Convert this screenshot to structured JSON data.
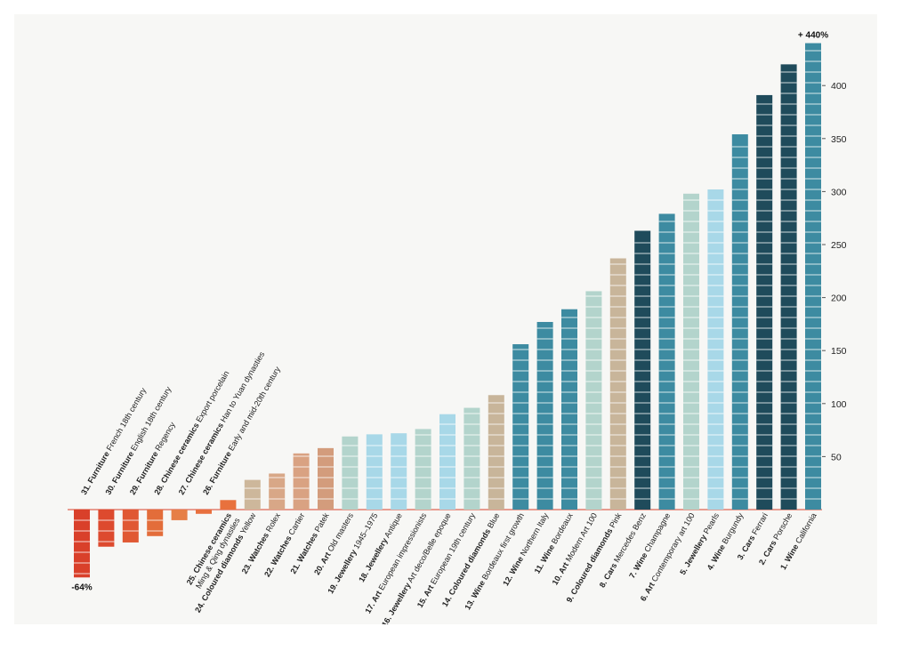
{
  "chart_data": {
    "type": "bar",
    "title": "",
    "xlabel": "",
    "ylabel": "",
    "ylim": [
      -64,
      440
    ],
    "yticks": [
      50,
      100,
      150,
      200,
      250,
      300,
      350,
      400
    ],
    "annotations": {
      "max_label": "+ 440%",
      "min_label": "-64%"
    },
    "grid": false,
    "categories": [
      {
        "num": "31.",
        "cat": "Furniture",
        "desc": "French 18th century",
        "value": -64,
        "color": "#d9402a"
      },
      {
        "num": "30.",
        "cat": "Furniture",
        "desc": "English 18th century",
        "value": -35,
        "color": "#dd4a2e"
      },
      {
        "num": "29.",
        "cat": "Furniture",
        "desc": "Regency",
        "value": -31,
        "color": "#e05833"
      },
      {
        "num": "28.",
        "cat": "Chinese ceramics",
        "desc": "Export porcelain",
        "value": -25,
        "color": "#e36d3a"
      },
      {
        "num": "27.",
        "cat": "Chinese ceramics",
        "desc": "Han to Yuan dynasties",
        "value": -10,
        "color": "#e67f46"
      },
      {
        "num": "26.",
        "cat": "Furniture",
        "desc": "Early and mid-20th century",
        "value": -4,
        "color": "#e8703e"
      },
      {
        "num": "25.",
        "cat": "Chinese ceramics",
        "desc": "Ming & Qing dynasties",
        "value": 9,
        "color": "#e8713d"
      },
      {
        "num": "24.",
        "cat": "Coloured diamonds",
        "desc": "Yellow",
        "value": 28,
        "color": "#cdb79b"
      },
      {
        "num": "23.",
        "cat": "Watches",
        "desc": "Rolex",
        "value": 34,
        "color": "#d8a787"
      },
      {
        "num": "22.",
        "cat": "Watches",
        "desc": "Cartier",
        "value": 53,
        "color": "#d9a282"
      },
      {
        "num": "21.",
        "cat": "Watches",
        "desc": "Patek",
        "value": 58,
        "color": "#d39c7c"
      },
      {
        "num": "20.",
        "cat": "Art",
        "desc": "Old masters",
        "value": 69,
        "color": "#b3d4cc"
      },
      {
        "num": "19.",
        "cat": "Jewellery",
        "desc": "1945–1975",
        "value": 71,
        "color": "#a8d8e8"
      },
      {
        "num": "18.",
        "cat": "Jewellery",
        "desc": "Antique",
        "value": 72,
        "color": "#a8d8e8"
      },
      {
        "num": "17.",
        "cat": "Art",
        "desc": "European impressionists",
        "value": 76,
        "color": "#b3d4cc"
      },
      {
        "num": "16.",
        "cat": "Jewellery",
        "desc": "Art deco/Belle epoque",
        "value": 90,
        "color": "#a8d8e8"
      },
      {
        "num": "15.",
        "cat": "Art",
        "desc": "European 19th century",
        "value": 96,
        "color": "#b3d4cc"
      },
      {
        "num": "14.",
        "cat": "Coloured diamonds",
        "desc": "Blue",
        "value": 108,
        "color": "#c8b59a"
      },
      {
        "num": "13.",
        "cat": "Wine",
        "desc": "Bordeaux first growth",
        "value": 156,
        "color": "#3d8ba1"
      },
      {
        "num": "12.",
        "cat": "Wine",
        "desc": "Northern Italy",
        "value": 177,
        "color": "#3d8ba1"
      },
      {
        "num": "11.",
        "cat": "Wine",
        "desc": "Bordeaux",
        "value": 189,
        "color": "#3d8ba1"
      },
      {
        "num": "10.",
        "cat": "Art",
        "desc": "Modern Art 100",
        "value": 206,
        "color": "#b3d4cc"
      },
      {
        "num": "9.",
        "cat": "Coloured diamonds",
        "desc": "Pink",
        "value": 237,
        "color": "#c8b59a"
      },
      {
        "num": "8.",
        "cat": "Cars",
        "desc": "Mercedes Benz",
        "value": 263,
        "color": "#1f4b5b"
      },
      {
        "num": "7.",
        "cat": "Wine",
        "desc": "Champagne",
        "value": 279,
        "color": "#3d8ba1"
      },
      {
        "num": "6.",
        "cat": "Art",
        "desc": "Contemporary art 100",
        "value": 298,
        "color": "#b3d4cc"
      },
      {
        "num": "5.",
        "cat": "Jewellery",
        "desc": "Pearls",
        "value": 302,
        "color": "#a8d8e8"
      },
      {
        "num": "4.",
        "cat": "Wine",
        "desc": "Burgundy",
        "value": 354,
        "color": "#3d8ba1"
      },
      {
        "num": "3.",
        "cat": "Cars",
        "desc": "Ferrari",
        "value": 391,
        "color": "#1f4b5b"
      },
      {
        "num": "2.",
        "cat": "Cars",
        "desc": "Porsche",
        "value": 420,
        "color": "#1f4b5b"
      },
      {
        "num": "1.",
        "cat": "Wine",
        "desc": "California",
        "value": 440,
        "color": "#3d8ba1"
      }
    ]
  }
}
